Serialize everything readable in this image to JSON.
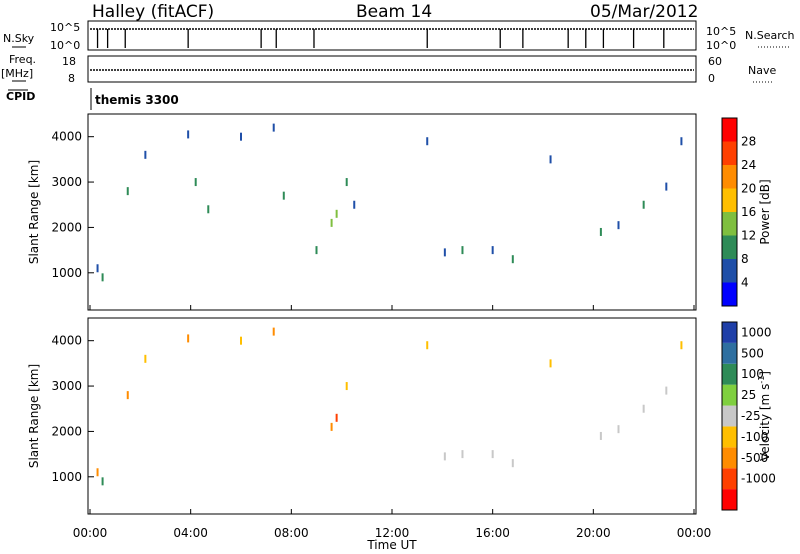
{
  "header": {
    "station": "Halley (fitACF)",
    "beam": "Beam 14",
    "date": "05/Mar/2012"
  },
  "side_labels": {
    "nsky": "N.Sky",
    "freq": "Freq.",
    "freq_unit": "[MHz]",
    "cpid": "CPID",
    "nsearch": "N.Search",
    "nave": "Nave",
    "nsky_ticks": [
      "10^5",
      "10^0"
    ],
    "nsearch_ticks": [
      "10^5",
      "10^0"
    ],
    "freq_ticks": [
      "18",
      "8"
    ],
    "nave_ticks": [
      "60",
      "0"
    ]
  },
  "cpid_label": "themis 3300",
  "colors": {
    "power": [
      "#0000ff",
      "#1f4fa8",
      "#2e8b57",
      "#7fbf3f",
      "#ffbf00",
      "#ff8c00",
      "#ff4000",
      "#ff0000"
    ],
    "velocity": [
      "#1f3fa8",
      "#2e6fa0",
      "#2e8b57",
      "#7fcf3f",
      "#c8c8c8",
      "#ffbf00",
      "#ff8c00",
      "#ff4000",
      "#ff0000"
    ]
  },
  "chart_data": [
    {
      "type": "heatmap",
      "panel": "power",
      "ylabel": "Slant Range [km]",
      "xlabel": "Time UT",
      "xlim": [
        0,
        24
      ],
      "ylim": [
        180,
        4500
      ],
      "x_ticks": [
        "00:00",
        "04:00",
        "08:00",
        "12:00",
        "16:00",
        "20:00",
        "00:00"
      ],
      "y_ticks": [
        1000,
        2000,
        3000,
        4000
      ],
      "colorbar": {
        "label": "Power [dB]",
        "range": [
          0,
          32
        ],
        "ticks": [
          "4",
          "8",
          "12",
          "16",
          "20",
          "24",
          "28"
        ]
      },
      "points": [
        {
          "x": 0.3,
          "y": 1100,
          "v": 6
        },
        {
          "x": 0.5,
          "y": 900,
          "v": 10
        },
        {
          "x": 1.5,
          "y": 2800,
          "v": 8
        },
        {
          "x": 2.2,
          "y": 3600,
          "v": 6
        },
        {
          "x": 3.9,
          "y": 4050,
          "v": 6
        },
        {
          "x": 4.2,
          "y": 3000,
          "v": 10
        },
        {
          "x": 4.7,
          "y": 2400,
          "v": 8
        },
        {
          "x": 6.0,
          "y": 4000,
          "v": 6
        },
        {
          "x": 7.3,
          "y": 4200,
          "v": 6
        },
        {
          "x": 7.7,
          "y": 2700,
          "v": 8
        },
        {
          "x": 9.0,
          "y": 1500,
          "v": 8
        },
        {
          "x": 9.6,
          "y": 2100,
          "v": 14
        },
        {
          "x": 9.8,
          "y": 2300,
          "v": 12
        },
        {
          "x": 10.2,
          "y": 3000,
          "v": 10
        },
        {
          "x": 10.5,
          "y": 2500,
          "v": 6
        },
        {
          "x": 13.4,
          "y": 3900,
          "v": 6
        },
        {
          "x": 14.1,
          "y": 1450,
          "v": 6
        },
        {
          "x": 14.8,
          "y": 1500,
          "v": 8
        },
        {
          "x": 16.0,
          "y": 1500,
          "v": 6
        },
        {
          "x": 16.8,
          "y": 1300,
          "v": 8
        },
        {
          "x": 18.3,
          "y": 3500,
          "v": 6
        },
        {
          "x": 20.3,
          "y": 1900,
          "v": 8
        },
        {
          "x": 21.0,
          "y": 2050,
          "v": 6
        },
        {
          "x": 22.0,
          "y": 2500,
          "v": 8
        },
        {
          "x": 22.9,
          "y": 2900,
          "v": 6
        },
        {
          "x": 23.5,
          "y": 3900,
          "v": 6
        }
      ]
    },
    {
      "type": "heatmap",
      "panel": "velocity",
      "ylabel": "Slant Range [km]",
      "xlabel": "Time UT",
      "xlim": [
        0,
        24
      ],
      "ylim": [
        180,
        4500
      ],
      "x_ticks": [
        "00:00",
        "04:00",
        "08:00",
        "12:00",
        "16:00",
        "20:00",
        "00:00"
      ],
      "y_ticks": [
        1000,
        2000,
        3000,
        4000
      ],
      "colorbar": {
        "label": "Velocity [m s-1]",
        "label_unit": "m s",
        "label_exponent": "-1",
        "ticks": [
          "1000",
          "500",
          "100",
          "25",
          "-25",
          "-100",
          "-500",
          "-1000"
        ]
      },
      "points": [
        {
          "x": 0.3,
          "y": 1100,
          "v": -500
        },
        {
          "x": 0.5,
          "y": 900,
          "v": 100
        },
        {
          "x": 1.5,
          "y": 2800,
          "v": -500
        },
        {
          "x": 2.2,
          "y": 3600,
          "v": -100
        },
        {
          "x": 3.9,
          "y": 4050,
          "v": -500
        },
        {
          "x": 6.0,
          "y": 4000,
          "v": -100
        },
        {
          "x": 7.3,
          "y": 4200,
          "v": -500
        },
        {
          "x": 9.6,
          "y": 2100,
          "v": -500
        },
        {
          "x": 9.8,
          "y": 2300,
          "v": -1000
        },
        {
          "x": 10.2,
          "y": 3000,
          "v": -100
        },
        {
          "x": 13.4,
          "y": 3900,
          "v": -100
        },
        {
          "x": 14.1,
          "y": 1450,
          "v": 0
        },
        {
          "x": 14.8,
          "y": 1500,
          "v": 0
        },
        {
          "x": 16.0,
          "y": 1500,
          "v": 0
        },
        {
          "x": 16.8,
          "y": 1300,
          "v": 0
        },
        {
          "x": 18.3,
          "y": 3500,
          "v": -100
        },
        {
          "x": 20.3,
          "y": 1900,
          "v": 0
        },
        {
          "x": 21.0,
          "y": 2050,
          "v": 0
        },
        {
          "x": 22.0,
          "y": 2500,
          "v": 0
        },
        {
          "x": 22.9,
          "y": 2900,
          "v": 0
        },
        {
          "x": 23.5,
          "y": 3900,
          "v": -100
        }
      ]
    }
  ]
}
